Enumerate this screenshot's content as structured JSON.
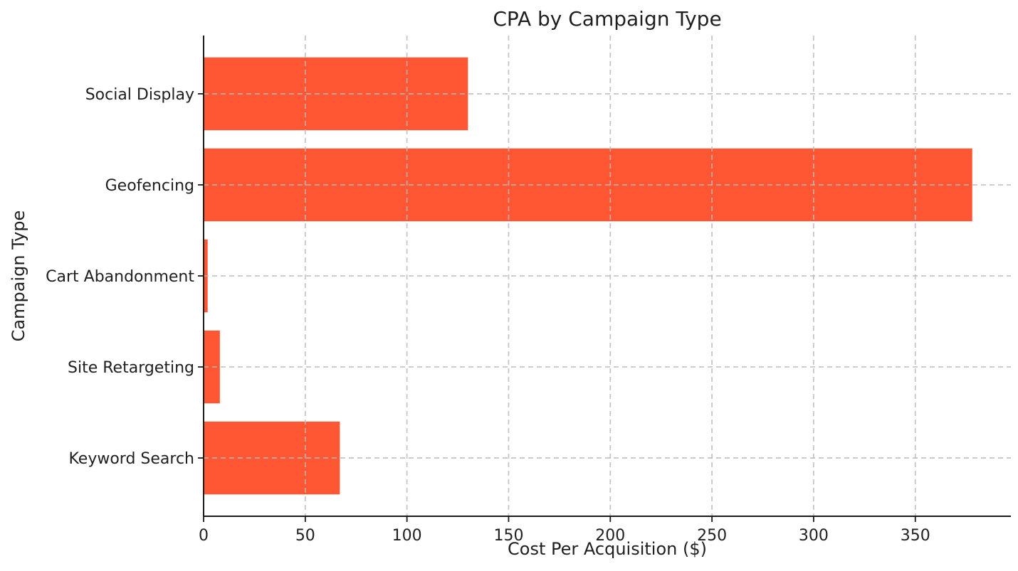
{
  "chart_data": {
    "type": "bar",
    "orientation": "horizontal",
    "title": "CPA by Campaign Type",
    "xlabel": "Cost Per Acquisition ($)",
    "ylabel": "Campaign Type",
    "categories": [
      "Social Display",
      "Geofencing",
      "Cart Abandonment",
      "Site Retargeting",
      "Keyword Search"
    ],
    "values": [
      130,
      378,
      2,
      8,
      67
    ],
    "x_ticks": [
      0,
      50,
      100,
      150,
      200,
      250,
      300,
      350
    ],
    "xlim": [
      0,
      397
    ],
    "bar_color": "#FF5733",
    "grid_color": "#b9b9b9",
    "grid_style": "dashed-both-axes-above-bars",
    "text_color": "#1f1f1f",
    "background_color": "#ffffff",
    "legend": "none"
  }
}
